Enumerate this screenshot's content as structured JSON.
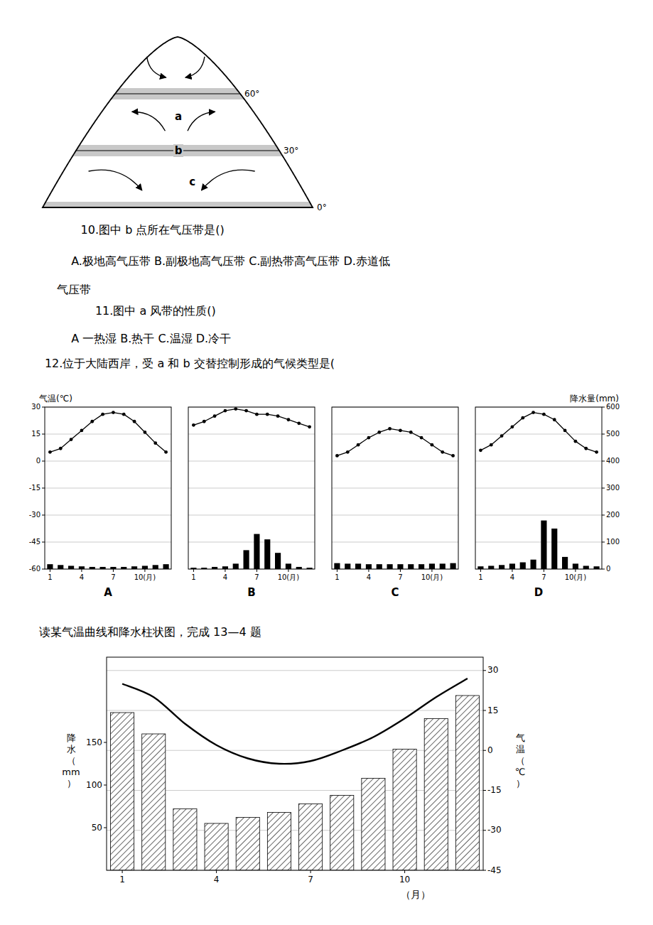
{
  "chart_data": [
    {
      "type": "diagram",
      "annotations": [
        "60°",
        "30°",
        "0°",
        "a",
        "b",
        "c"
      ]
    },
    {
      "type": "text",
      "annotations": [
        "10.图中 b 点所在气压带是()",
        "    A.极地高气压带 B.副极地高气压带 C.副热带高气压带 D.赤道低",
        "气压带",
        "    11.图中 a 风带的性质()",
        "    A 一热湿 B.热干 C.温湿 D.冷干",
        "12.位于大陆西岸，受 a 和 b 交替控制形成的气候类型是("
      ]
    },
    {
      "type": "bar",
      "title": "A",
      "x": [
        1,
        2,
        3,
        4,
        5,
        6,
        7,
        8,
        9,
        10,
        11,
        12
      ],
      "xlim": [
        0.5,
        12.5
      ],
      "xticks": [
        1,
        4,
        7,
        {
          "value": 10,
          "label": "10(月)"
        }
      ],
      "ylim": [
        -60,
        30
      ],
      "yticks": [
        -60,
        -45,
        -30,
        -15,
        0,
        15,
        30
      ],
      "y2lim": [
        0,
        600
      ],
      "ylabel": "气温(℃)",
      "grid": "y",
      "series": [
        {
          "type": "bar",
          "axis": "y2",
          "color": "#000000",
          "values": [
            18,
            15,
            12,
            10,
            8,
            8,
            8,
            8,
            10,
            12,
            15,
            18
          ]
        },
        {
          "type": "line",
          "color": "#000000",
          "marker": "circle",
          "line_style": "solid",
          "values": [
            5,
            7,
            12,
            17,
            22,
            26,
            27,
            26,
            22,
            16,
            10,
            5
          ]
        }
      ]
    },
    {
      "type": "bar",
      "title": "B",
      "x": [
        1,
        2,
        3,
        4,
        5,
        6,
        7,
        8,
        9,
        10,
        11,
        12
      ],
      "xlim": [
        0.5,
        12.5
      ],
      "xticks": [
        1,
        4,
        7,
        {
          "value": 10,
          "label": "10(月)"
        }
      ],
      "ylim": [
        -60,
        30
      ],
      "yticks": [
        -60,
        -45,
        -30,
        -15,
        0,
        15,
        30
      ],
      "y2lim": [
        0,
        600
      ],
      "grid": "y",
      "tick_labels": "x",
      "series": [
        {
          "type": "bar",
          "axis": "y2",
          "color": "#000000",
          "values": [
            5,
            5,
            8,
            10,
            20,
            70,
            130,
            110,
            60,
            20,
            8,
            5
          ]
        },
        {
          "type": "line",
          "color": "#000000",
          "marker": "circle",
          "line_style": "solid",
          "values": [
            20,
            22,
            25,
            28,
            29,
            28,
            26,
            26,
            25,
            23,
            21,
            19
          ]
        }
      ]
    },
    {
      "type": "bar",
      "title": "C",
      "x": [
        1,
        2,
        3,
        4,
        5,
        6,
        7,
        8,
        9,
        10,
        11,
        12
      ],
      "xlim": [
        0.5,
        12.5
      ],
      "xticks": [
        1,
        4,
        7,
        {
          "value": 10,
          "label": "10(月)"
        }
      ],
      "ylim": [
        -60,
        30
      ],
      "yticks": [
        -60,
        -45,
        -30,
        -15,
        0,
        15,
        30
      ],
      "y2lim": [
        0,
        600
      ],
      "grid": "y",
      "tick_labels": "x",
      "series": [
        {
          "type": "bar",
          "axis": "y2",
          "color": "#000000",
          "values": [
            22,
            20,
            20,
            18,
            18,
            18,
            18,
            18,
            18,
            20,
            20,
            22
          ]
        },
        {
          "type": "line",
          "color": "#000000",
          "marker": "circle",
          "line_style": "solid",
          "values": [
            3,
            5,
            9,
            13,
            16,
            18,
            17,
            16,
            13,
            9,
            5,
            3
          ]
        }
      ]
    },
    {
      "type": "bar",
      "title": "D",
      "x": [
        1,
        2,
        3,
        4,
        5,
        6,
        7,
        8,
        9,
        10,
        11,
        12
      ],
      "xlim": [
        0.5,
        12.5
      ],
      "xticks": [
        1,
        4,
        7,
        {
          "value": 10,
          "label": "10(月)"
        }
      ],
      "ylim": [
        -60,
        30
      ],
      "y2lim": [
        0,
        600
      ],
      "y2ticks": [
        0,
        100,
        200,
        300,
        400,
        500,
        600
      ],
      "y2label": "降水量(mm)",
      "grid": "y2",
      "series": [
        {
          "type": "bar",
          "axis": "y2",
          "color": "#000000",
          "values": [
            10,
            12,
            15,
            20,
            25,
            35,
            180,
            150,
            45,
            20,
            12,
            10
          ]
        },
        {
          "type": "line",
          "color": "#000000",
          "marker": "circle",
          "line_style": "solid",
          "values": [
            6,
            9,
            14,
            19,
            24,
            27,
            26,
            23,
            17,
            11,
            7,
            5
          ]
        }
      ]
    },
    {
      "type": "bar",
      "title": "读某气温曲线和降水柱状图，完成 13—4 题",
      "x": [
        1,
        2,
        3,
        4,
        5,
        6,
        7,
        8,
        9,
        10,
        11,
        12
      ],
      "xlim": [
        0.5,
        12.5
      ],
      "xticks": [
        1,
        4,
        7,
        10
      ],
      "xlabel": "（月）",
      "ylim": [
        0,
        250
      ],
      "yticks": [
        50,
        100,
        150
      ],
      "ylabel": "降水（mm）",
      "y2lim": [
        -45,
        35
      ],
      "y2ticks": [
        -45,
        -30,
        -15,
        0,
        15,
        30
      ],
      "y2label": "气温（℃）",
      "grid": "y2",
      "series": [
        {
          "type": "bar",
          "color": "#ffffff",
          "values": [
            185,
            160,
            72,
            55,
            62,
            68,
            78,
            88,
            108,
            142,
            178,
            205
          ]
        },
        {
          "type": "line",
          "axis": "y2",
          "color": "#000000",
          "line_style": "smooth",
          "values": [
            25,
            20,
            10,
            2,
            -3,
            -5,
            -4,
            0,
            5,
            12,
            20,
            27
          ]
        }
      ]
    }
  ]
}
